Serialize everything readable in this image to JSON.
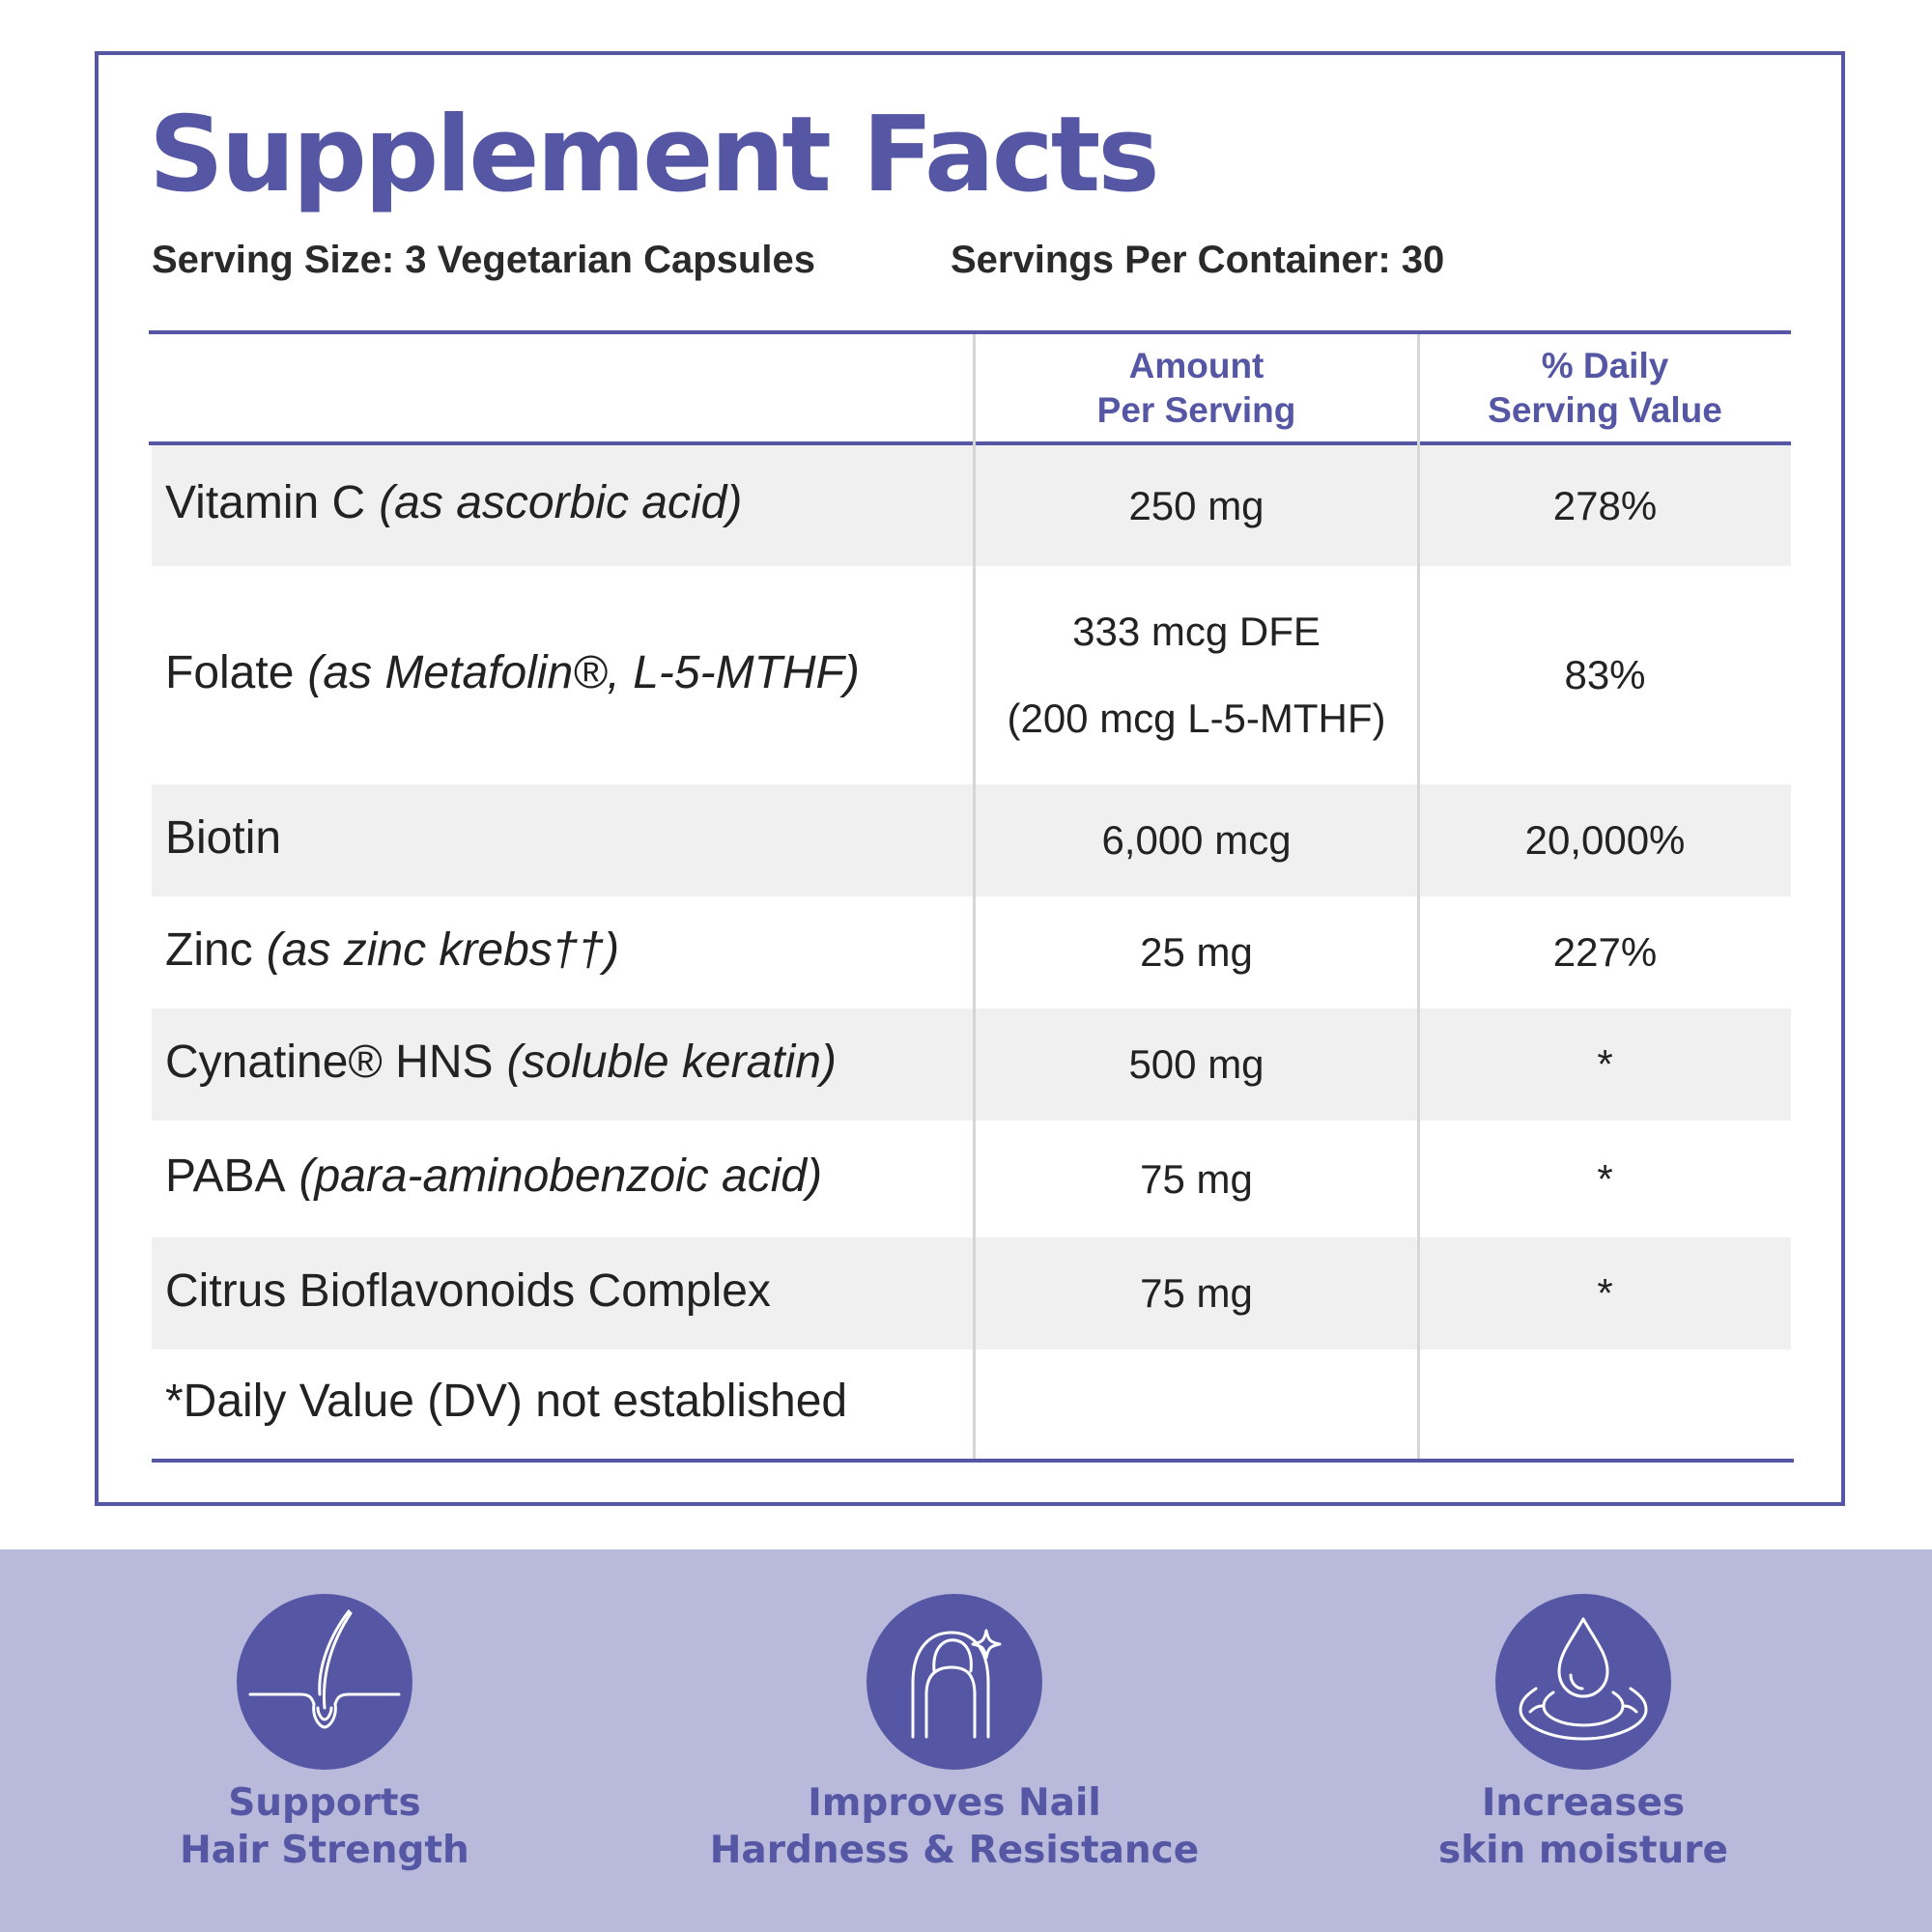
{
  "title": "Supplement Facts",
  "serving_size": "Serving Size: 3 Vegetarian Capsules",
  "servings_per_container": "Servings Per Container: 30",
  "columns": {
    "amount": [
      "Amount",
      "Per Serving"
    ],
    "daily_value": [
      "% Daily",
      "Serving Value"
    ]
  },
  "rows": [
    {
      "name": "Vitamin C",
      "sub": "(as ascorbic acid)",
      "amount": "250 mg",
      "dv": "278%"
    },
    {
      "name": "Folate",
      "sub": "(as Metafolin®, L-5-MTHF)",
      "amount": "333 mcg DFE",
      "amount2": "(200 mcg L-5-MTHF)",
      "dv": "83%"
    },
    {
      "name": "Biotin",
      "amount": "6,000 mcg",
      "dv": "20,000%"
    },
    {
      "name": "Zinc",
      "sub": "(as zinc krebs††)",
      "amount": "25 mg",
      "dv": "227%"
    },
    {
      "name": "Cynatine® HNS",
      "sub": "(soluble keratin)",
      "amount": "500 mg",
      "dv": "*"
    },
    {
      "name": "PABA",
      "sub": "(para-aminobenzoic acid)",
      "amount": "75 mg",
      "dv": "*"
    },
    {
      "name": "Citrus Bioflavonoids Complex",
      "amount": "75 mg",
      "dv": "*"
    }
  ],
  "footnote": "*Daily Value (DV) not established",
  "benefits": [
    {
      "icon": "hair-follicle-icon",
      "lines": [
        "Supports",
        "Hair Strength"
      ]
    },
    {
      "icon": "nail-sparkle-icon",
      "lines": [
        "Improves Nail",
        "Hardness & Resistance"
      ]
    },
    {
      "icon": "water-drop-icon",
      "lines": [
        "Increases",
        "skin moisture"
      ]
    }
  ],
  "colors": {
    "brand": "#5557a4",
    "band": "#b9b9dc",
    "row_shade": "#f0f0f0"
  }
}
